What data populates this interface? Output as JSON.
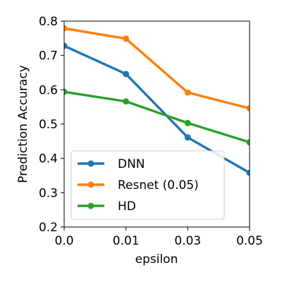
{
  "chart_data": {
    "type": "line",
    "title": "",
    "xlabel": "epsilon",
    "ylabel": "Prediction Accuracy",
    "x_ticks": [
      "0.0",
      "0.01",
      "0.03",
      "0.05"
    ],
    "y_ticks": [
      "0.2",
      "0.3",
      "0.4",
      "0.5",
      "0.6",
      "0.7",
      "0.8"
    ],
    "ylim": [
      0.2,
      0.8
    ],
    "grid": false,
    "legend_position": "lower-left",
    "series": [
      {
        "name": "DNN",
        "color": "#1f77b4",
        "values": [
          0.728,
          0.646,
          0.461,
          0.358
        ]
      },
      {
        "name": "Resnet (0.05)",
        "color": "#ff7f0e",
        "values": [
          0.779,
          0.749,
          0.592,
          0.546
        ]
      },
      {
        "name": "HD",
        "color": "#2ca02c",
        "values": [
          0.594,
          0.566,
          0.503,
          0.447
        ]
      }
    ]
  }
}
